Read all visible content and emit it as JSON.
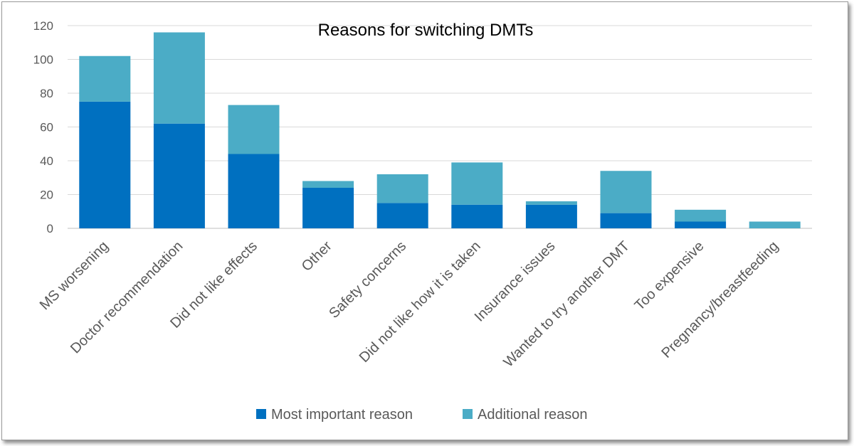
{
  "chart_data": {
    "type": "bar",
    "stacked": true,
    "title": "Reasons for switching DMTs",
    "xlabel": "",
    "ylabel": "",
    "ylim": [
      0,
      120
    ],
    "yticks": [
      0,
      20,
      40,
      60,
      80,
      100,
      120
    ],
    "gridlines": true,
    "legend_position": "bottom",
    "categories": [
      "MS worsening",
      "Doctor recommendation",
      "Did not like effects",
      "Other",
      "Safety concerns",
      "Did not like how it is taken",
      "Insurance issues",
      "Wanted to try another DMT",
      "Too expensive",
      "Pregnancy/breastfeeding"
    ],
    "series": [
      {
        "name": "Most important reason",
        "color": "#0070c0",
        "values": [
          75,
          62,
          44,
          24,
          15,
          14,
          14,
          9,
          4,
          0
        ]
      },
      {
        "name": "Additional reason",
        "color": "#4bacc6",
        "values": [
          27,
          54,
          29,
          4,
          17,
          25,
          2,
          25,
          7,
          4
        ]
      }
    ]
  }
}
